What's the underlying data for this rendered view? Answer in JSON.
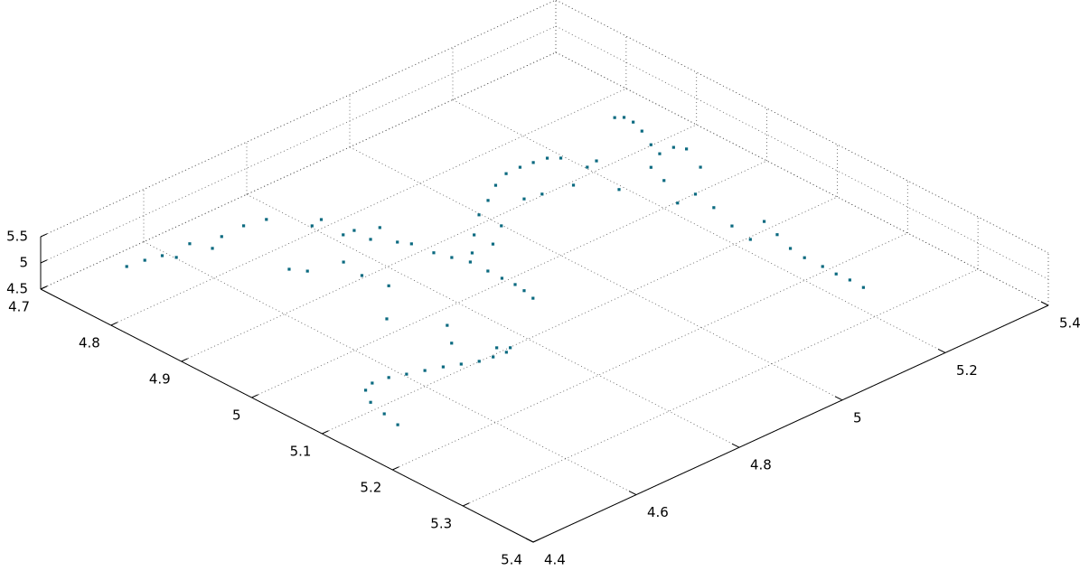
{
  "chart_data": {
    "type": "scatter3d",
    "color": "#0b6a80",
    "grid": true,
    "xlim": [
      4.7,
      5.4
    ],
    "ylim": [
      4.4,
      5.4
    ],
    "zlim": [
      4.5,
      5.5
    ],
    "xticks": [
      4.7,
      4.8,
      4.9,
      5,
      5.1,
      5.2,
      5.3,
      5.4
    ],
    "yticks": [
      4.4,
      4.6,
      4.8,
      5,
      5.2,
      5.4
    ],
    "zticks": [
      4.5,
      5,
      5.5
    ],
    "x": [
      4.763,
      4.766,
      4.771,
      4.783,
      4.772,
      4.794,
      4.783,
      4.782,
      4.788,
      4.876,
      4.891,
      4.828,
      4.825,
      4.862,
      4.902,
      4.863,
      4.934,
      4.887,
      4.876,
      4.967,
      4.909,
      4.921,
      4.949,
      4.968,
      4.987,
      5.012,
      5.032,
      5.05,
      5.065,
      5.082,
      4.975,
      4.95,
      4.924,
      4.909,
      4.892,
      4.882,
      4.882,
      4.884,
      4.887,
      4.896,
      4.944,
      4.927,
      4.924,
      4.981,
      4.931,
      4.936,
      4.955,
      4.976,
      5.176,
      5.151,
      5.125,
      5.104,
      5.098,
      5.101,
      5.108,
      5.115,
      5.122,
      5.13,
      5.138,
      5.141,
      5.143,
      5.139,
      5.13,
      5.093,
      5.064,
      5.014,
      4.873,
      4.879,
      4.892,
      4.911,
      4.937,
      4.956,
      4.956,
      4.967,
      5.003,
      4.97,
      4.998,
      5.04,
      5.039,
      5.071,
      5.11,
      5.142,
      5.125,
      5.153,
      5.182,
      5.205,
      5.23,
      5.25,
      5.268,
      5.288
    ],
    "y": [
      4.481,
      4.512,
      4.539,
      4.55,
      4.591,
      4.605,
      4.638,
      4.682,
      4.718,
      4.642,
      4.657,
      4.752,
      4.774,
      4.766,
      4.712,
      4.786,
      4.704,
      4.785,
      4.818,
      4.711,
      4.807,
      4.818,
      4.823,
      4.832,
      4.842,
      4.842,
      4.842,
      4.843,
      4.84,
      4.834,
      4.862,
      4.9,
      4.945,
      4.983,
      5.021,
      5.055,
      5.082,
      5.105,
      5.128,
      5.142,
      5.101,
      5.151,
      5.173,
      5.139,
      5.023,
      5.051,
      4.946,
      4.901,
      4.443,
      4.451,
      4.46,
      4.479,
      4.5,
      4.528,
      4.553,
      4.579,
      4.605,
      4.629,
      4.653,
      4.676,
      4.699,
      4.712,
      4.698,
      4.661,
      4.692,
      4.643,
      5.278,
      5.288,
      5.288,
      5.279,
      5.261,
      5.252,
      5.279,
      5.289,
      5.267,
      5.216,
      5.203,
      5.172,
      5.208,
      5.2,
      5.182,
      5.174,
      5.224,
      5.211,
      5.197,
      5.193,
      5.194,
      5.193,
      5.195,
      5.194
    ],
    "z": [
      5,
      5,
      5,
      5,
      5,
      5,
      5,
      5,
      5,
      5,
      5,
      5,
      5,
      5,
      5,
      5,
      5,
      5,
      5,
      5,
      5,
      5,
      5,
      5,
      5,
      5,
      5,
      5,
      5,
      5,
      5,
      5,
      5,
      5,
      5,
      5,
      5,
      5,
      5,
      5,
      5,
      5,
      5,
      5,
      5,
      5,
      5,
      5,
      5,
      5,
      5,
      5,
      5,
      5,
      5,
      5,
      5,
      5,
      5,
      5,
      5,
      5,
      5,
      5,
      5,
      5,
      5,
      5,
      5,
      5,
      5,
      5,
      5,
      5,
      5,
      5,
      5,
      5,
      5,
      5,
      5,
      5,
      5,
      5,
      5,
      5,
      5,
      5,
      5,
      5
    ]
  }
}
